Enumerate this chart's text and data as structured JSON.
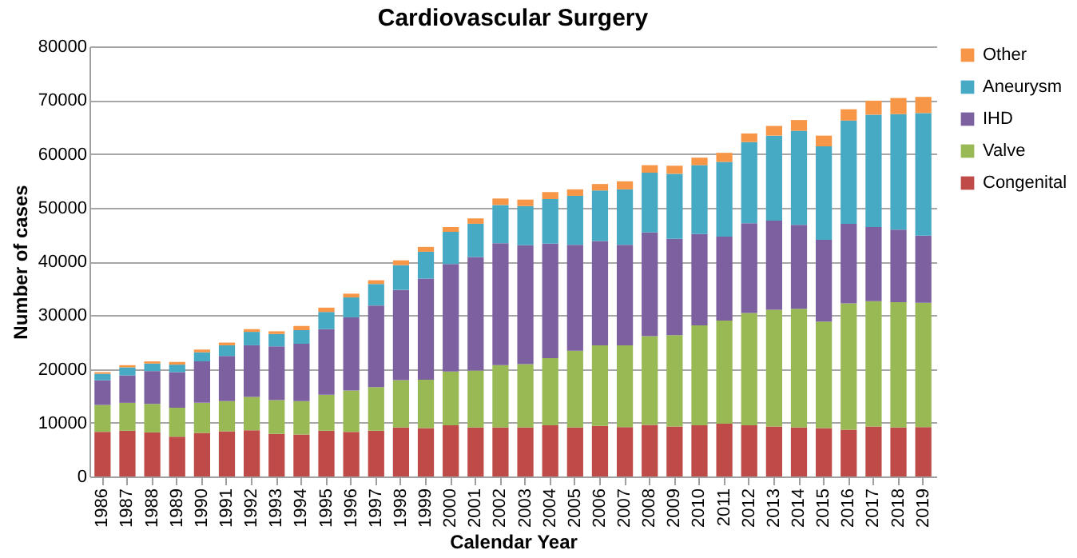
{
  "chart_data": {
    "type": "bar",
    "title": "Cardiovascular Surgery",
    "xlabel": "Calendar Year",
    "ylabel": "Number of cases",
    "stacked": true,
    "grid": "y",
    "legend": "right",
    "categories": [
      "1986",
      "1987",
      "1988",
      "1989",
      "1990",
      "1991",
      "1992",
      "1993",
      "1994",
      "1995",
      "1996",
      "1997",
      "1998",
      "1999",
      "2000",
      "2001",
      "2002",
      "2003",
      "2004",
      "2005",
      "2006",
      "2007",
      "2008",
      "2009",
      "2010",
      "2011",
      "2012",
      "2013",
      "2014",
      "2015",
      "2016",
      "2017",
      "2018",
      "2019"
    ],
    "ylim": [
      0,
      80000
    ],
    "yticks": [
      0,
      10000,
      20000,
      30000,
      40000,
      50000,
      60000,
      70000,
      80000
    ],
    "series": [
      {
        "name": "Congenital",
        "color": "#be4b48",
        "values": [
          8300,
          8500,
          8200,
          7400,
          8100,
          8400,
          8600,
          7900,
          7800,
          8500,
          8300,
          8500,
          9100,
          9000,
          9500,
          9100,
          9100,
          9100,
          9500,
          9100,
          9400,
          9200,
          9600,
          9300,
          9500,
          9800,
          9500,
          9300,
          9100,
          9000,
          8700,
          9300,
          9100,
          9200
        ]
      },
      {
        "name": "Valve",
        "color": "#98b954",
        "values": [
          5000,
          5200,
          5300,
          5400,
          5600,
          5600,
          6200,
          6300,
          6200,
          6700,
          7700,
          8100,
          8800,
          9000,
          10000,
          10600,
          11600,
          11800,
          12500,
          14300,
          15000,
          15200,
          16500,
          17000,
          18600,
          19200,
          20900,
          21700,
          22100,
          19800,
          23500,
          23300,
          23300,
          23100
        ]
      },
      {
        "name": "IHD",
        "color": "#7d60a0",
        "values": [
          4600,
          5100,
          6100,
          6600,
          7700,
          8400,
          9600,
          10000,
          10700,
          12200,
          13600,
          15200,
          16800,
          18800,
          20000,
          21100,
          22700,
          22100,
          21300,
          19700,
          19400,
          18700,
          19300,
          17900,
          17000,
          15600,
          16700,
          16600,
          15600,
          15200,
          14800,
          13800,
          13500,
          12500
        ]
      },
      {
        "name": "Aneurysm",
        "color": "#46aac5",
        "values": [
          1200,
          1500,
          1400,
          1400,
          1700,
          2000,
          2500,
          2300,
          2500,
          3200,
          3700,
          4000,
          4600,
          5000,
          6000,
          6200,
          7100,
          7300,
          8300,
          9100,
          9400,
          10300,
          11100,
          12100,
          12800,
          13900,
          15100,
          15800,
          17500,
          17400,
          19200,
          20900,
          21500,
          22800
        ]
      },
      {
        "name": "Other",
        "color": "#f79646",
        "values": [
          300,
          400,
          400,
          500,
          500,
          500,
          500,
          500,
          800,
          800,
          700,
          700,
          900,
          900,
          900,
          1000,
          1200,
          1200,
          1300,
          1200,
          1200,
          1500,
          1400,
          1500,
          1400,
          1700,
          1600,
          1800,
          2000,
          2000,
          2100,
          2600,
          3000,
          3000
        ]
      }
    ]
  }
}
